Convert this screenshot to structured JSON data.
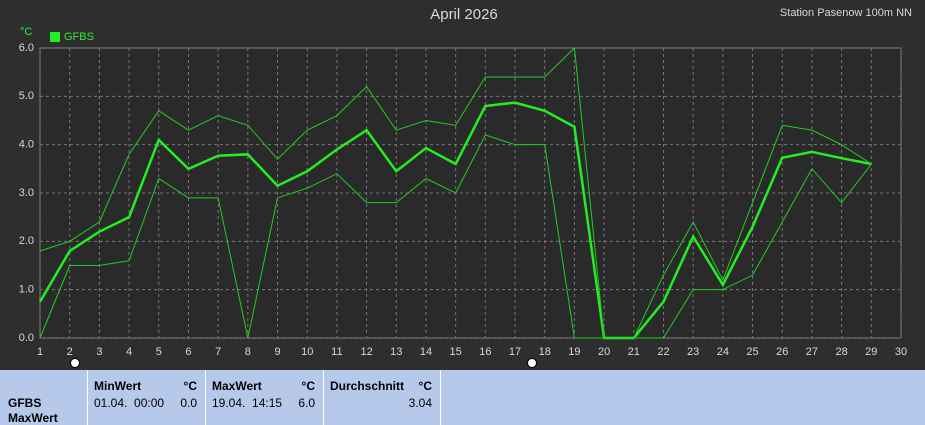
{
  "chart_data": {
    "type": "line",
    "title": "April 2026",
    "subtitle": "Station Pasenow  100m NN",
    "y_label": "°C",
    "x": [
      1,
      2,
      3,
      4,
      5,
      6,
      7,
      8,
      9,
      10,
      11,
      12,
      13,
      14,
      15,
      16,
      17,
      18,
      19,
      20,
      21,
      22,
      23,
      24,
      25,
      26,
      27,
      28,
      29
    ],
    "series": [
      {
        "name": "GFBS",
        "color": "#22ee22",
        "values": [
          0.75,
          1.8,
          2.2,
          2.5,
          4.1,
          3.5,
          3.77,
          3.8,
          3.15,
          3.45,
          3.9,
          4.3,
          3.45,
          3.93,
          3.6,
          4.8,
          4.87,
          4.7,
          4.37,
          0.0,
          0.0,
          0.75,
          2.1,
          1.1,
          2.3,
          3.73,
          3.85,
          3.72,
          3.6
        ]
      },
      {
        "color": "#22cc22",
        "values": [
          1.8,
          2.0,
          2.4,
          3.8,
          4.7,
          4.3,
          4.6,
          4.4,
          3.7,
          4.3,
          4.6,
          5.2,
          4.3,
          4.5,
          4.4,
          5.4,
          5.4,
          5.4,
          6.0,
          0.0,
          0.0,
          1.3,
          2.4,
          1.2,
          2.8,
          4.4,
          4.3,
          4.0,
          3.6
        ]
      },
      {
        "color": "#22cc22",
        "values": [
          0.0,
          1.5,
          1.5,
          1.6,
          3.3,
          2.9,
          2.9,
          0.0,
          2.9,
          3.1,
          3.4,
          2.8,
          2.8,
          3.3,
          3.0,
          4.2,
          4.0,
          4.0,
          0.0,
          0.0,
          0.0,
          0.0,
          1.0,
          1.0,
          1.3,
          2.4,
          3.5,
          2.8,
          3.6
        ]
      }
    ],
    "xlim": [
      1,
      30
    ],
    "ylim": [
      0,
      6
    ],
    "xticks": [
      1,
      2,
      3,
      4,
      5,
      6,
      7,
      8,
      9,
      10,
      11,
      12,
      13,
      14,
      15,
      16,
      17,
      18,
      19,
      20,
      21,
      22,
      23,
      24,
      25,
      26,
      27,
      28,
      29,
      30
    ],
    "yticks": [
      {
        "value": 0,
        "label": "0.0"
      },
      {
        "value": 1,
        "label": "1.0"
      },
      {
        "value": 2,
        "label": "2.0"
      },
      {
        "value": 3,
        "label": "3.0"
      },
      {
        "value": 4,
        "label": "4.0"
      },
      {
        "value": 5,
        "label": "5.0"
      },
      {
        "value": 6,
        "label": "6.0"
      }
    ],
    "grid": true,
    "legend": "top-left"
  },
  "summary": {
    "station": "GFBS",
    "kind": "MaxWert",
    "columns": [
      {
        "label": "MinWert",
        "unit": "°C",
        "time": "01.04.  00:00",
        "value": "0.0"
      },
      {
        "label": "MaxWert",
        "unit": "°C",
        "time": "19.04.  14:15",
        "value": "6.0"
      },
      {
        "label": "Durchschnitt",
        "unit": "°C",
        "value": "3.04"
      }
    ]
  }
}
